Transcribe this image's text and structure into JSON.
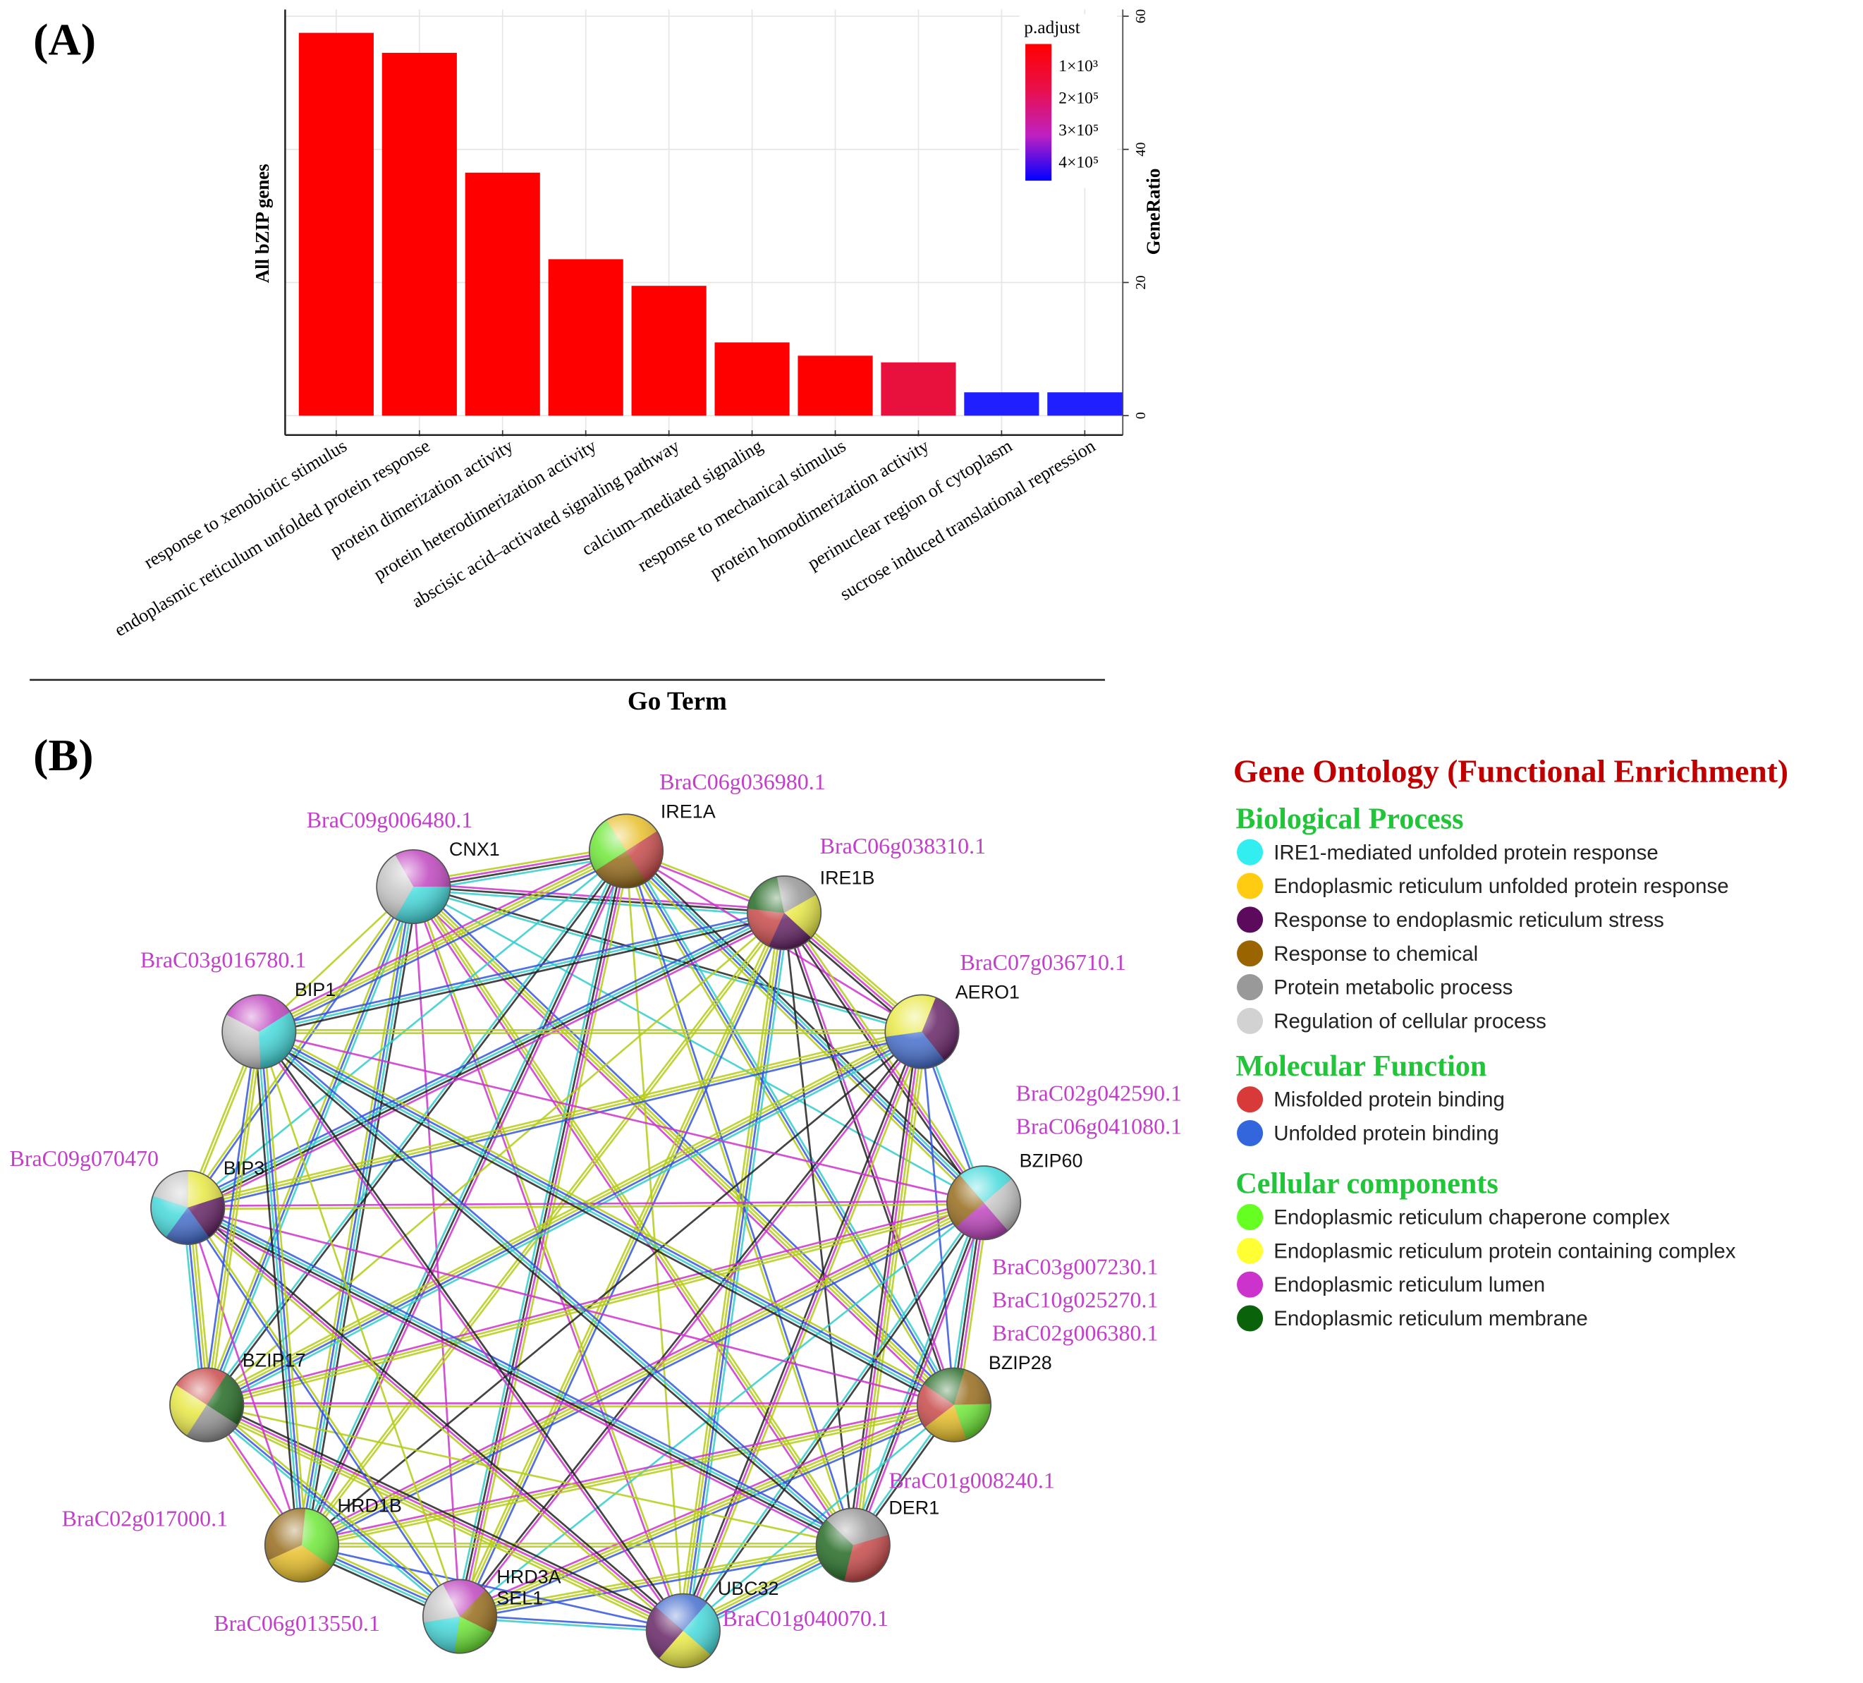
{
  "panel_labels": [
    "(A)",
    "(B)"
  ],
  "chart_data": {
    "type": "bar",
    "x_label": "Go Term",
    "y_label": "All bZIP genes",
    "y2_label": "GeneRatio",
    "categories": [
      "response to xenobiotic stimulus",
      "endoplasmic reticulum unfolded protein response",
      "protein dimerization activity",
      "protein heterodimerization activity",
      "abscisic acid–activated signaling pathway",
      "calcium–mediated signaling",
      "response to mechanical stimulus",
      "protein homodimerization activity",
      "perinuclear region of cytoplasm",
      "sucrose induced translational repression"
    ],
    "values": [
      57.5,
      54.5,
      36.5,
      23.5,
      19.5,
      11,
      9,
      8,
      3.5,
      3.5
    ],
    "colors": [
      "#ff0000",
      "#ff0000",
      "#ff0000",
      "#ff0000",
      "#ff0000",
      "#ff0000",
      "#ff0000",
      "#e8103c",
      "#1f1fff",
      "#1f1fff"
    ],
    "ylim": [
      -2.2,
      61
    ],
    "yticks": [
      0,
      20,
      40,
      60
    ],
    "grid": true,
    "colorbar": {
      "title": "p.adjust",
      "labels": [
        "1×10³",
        "2×10⁵",
        "3×10⁵",
        "4×10⁵"
      ],
      "colors": [
        "#ff0000",
        "#e8104a",
        "#c020c0",
        "#0000ff"
      ]
    }
  },
  "network": {
    "nodes": [
      {
        "ids": [
          "BraC09g006480.1"
        ],
        "names": [
          "CNX1"
        ]
      },
      {
        "ids": [
          "BraC06g036980.1"
        ],
        "names": [
          "IRE1A"
        ]
      },
      {
        "ids": [
          "BraC06g038310.1"
        ],
        "names": [
          "IRE1B"
        ]
      },
      {
        "ids": [
          "BraC07g036710.1"
        ],
        "names": [
          "AERO1"
        ]
      },
      {
        "ids": [
          "BraC02g042590.1",
          "BraC06g041080.1"
        ],
        "names": [
          "BZIP60"
        ]
      },
      {
        "ids": [
          "BraC03g007230.1",
          "BraC10g025270.1",
          "BraC02g006380.1"
        ],
        "names": [
          "BZIP28"
        ]
      },
      {
        "ids": [
          "BraC01g008240.1"
        ],
        "names": [
          "DER1"
        ]
      },
      {
        "ids": [
          "BraC01g040070.1"
        ],
        "names": [
          "UBC32"
        ]
      },
      {
        "ids": [
          "BraC06g013550.1"
        ],
        "names": [
          "HRD3A",
          "SEL1"
        ]
      },
      {
        "ids": [
          "BraC02g017000.1"
        ],
        "names": [
          "HRD1B"
        ]
      },
      {
        "ids": [],
        "names": [
          "BZIP17"
        ]
      },
      {
        "ids": [
          "BraC09g070470"
        ],
        "names": [
          "BIP3"
        ]
      },
      {
        "ids": [
          "BraC03g016780.1"
        ],
        "names": [
          "BIP1"
        ]
      }
    ]
  },
  "legend": {
    "title": "Gene Ontology (Functional Enrichment)",
    "sections": [
      {
        "title": "Biological Process",
        "items": [
          {
            "label": "IRE1-mediated unfolded protein response",
            "color": "#33eef0"
          },
          {
            "label": "Endoplasmic reticulum unfolded protein response",
            "color": "#ffcc11"
          },
          {
            "label": "Response to endoplasmic reticulum stress",
            "color": "#5c0a5c"
          },
          {
            "label": "Response to chemical",
            "color": "#9a6400"
          },
          {
            "label": "Protein metabolic process",
            "color": "#999999"
          },
          {
            "label": "Regulation of cellular process",
            "color": "#d2d2d2"
          }
        ]
      },
      {
        "title": "Molecular Function",
        "items": [
          {
            "label": "Misfolded protein binding",
            "color": "#d83a3a"
          },
          {
            "label": "Unfolded protein binding",
            "color": "#3366dd"
          }
        ]
      },
      {
        "title": "Cellular components",
        "items": [
          {
            "label": "Endoplasmic reticulum chaperone complex",
            "color": "#66ff22"
          },
          {
            "label": "Endoplasmic reticulum protein containing complex",
            "color": "#ffff33"
          },
          {
            "label": "Endoplasmic reticulum lumen",
            "color": "#cc33cc"
          },
          {
            "label": "Endoplasmic reticulum membrane",
            "color": "#0a620a"
          }
        ]
      }
    ]
  }
}
